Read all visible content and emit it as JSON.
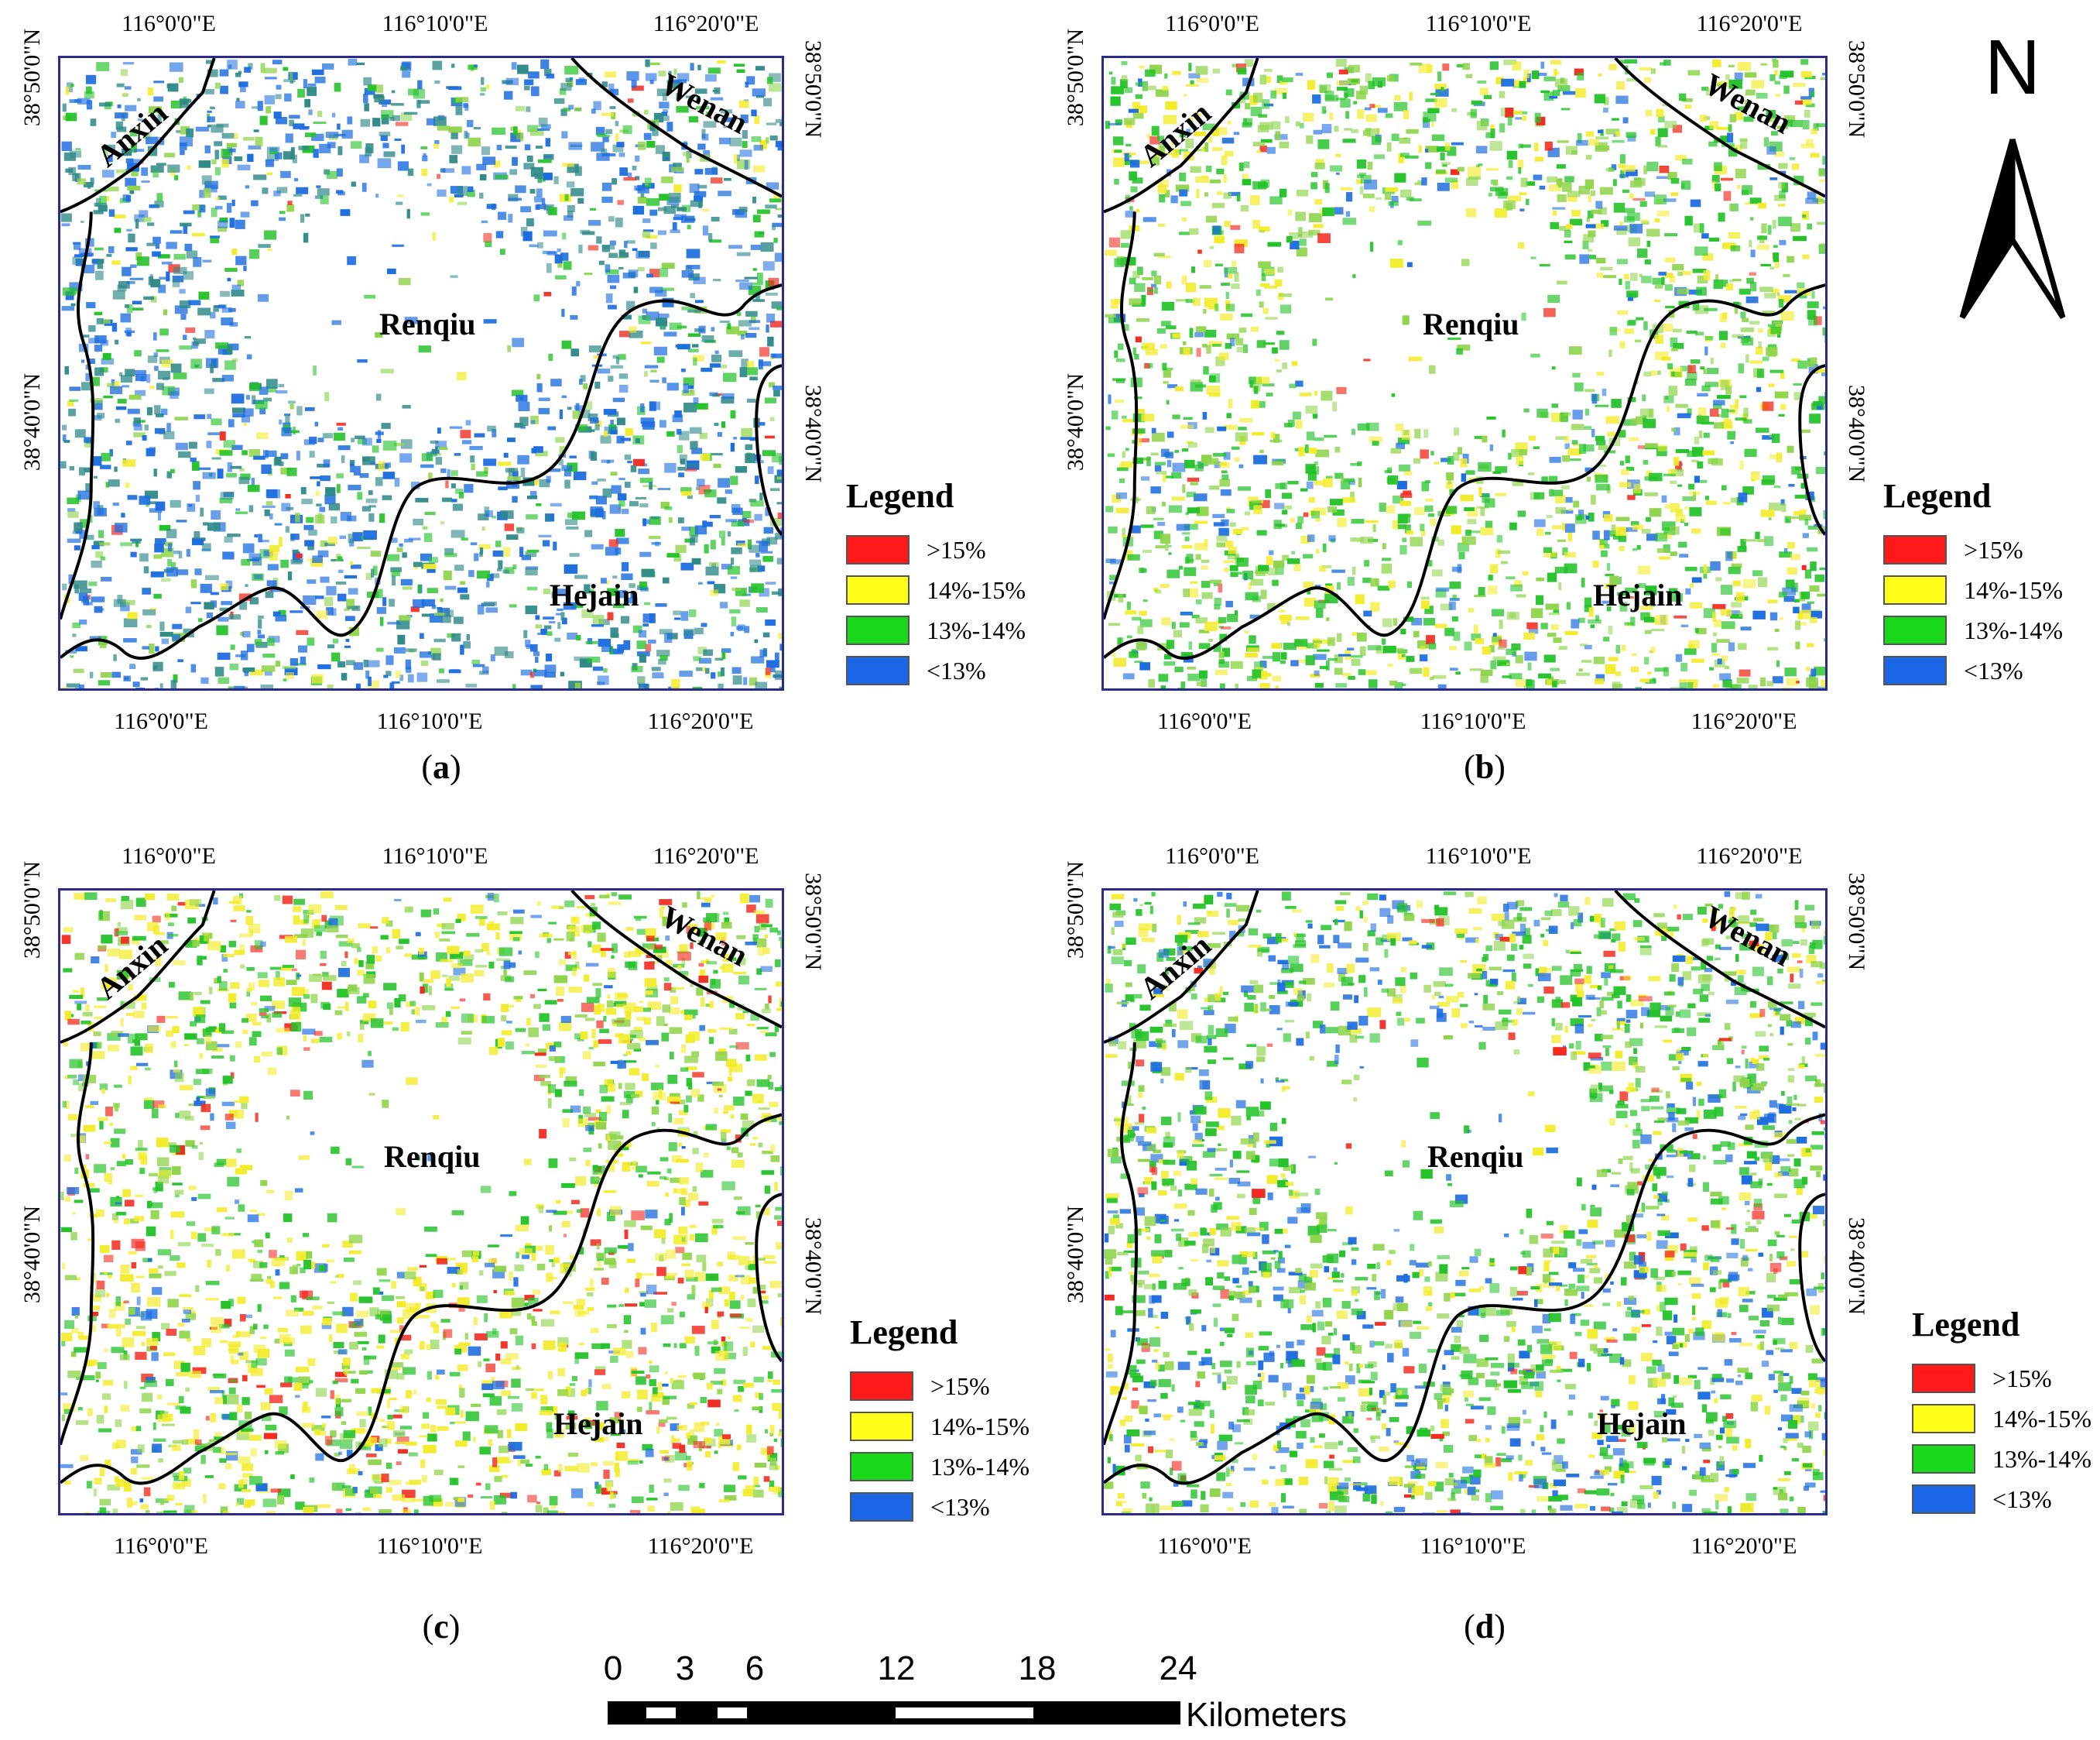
{
  "figure": {
    "panels": [
      {
        "id": "a",
        "caption": "a"
      },
      {
        "id": "b",
        "caption": "b"
      },
      {
        "id": "c",
        "caption": "c"
      },
      {
        "id": "d",
        "caption": "d"
      }
    ],
    "lon_ticks": [
      "116°0'0\"E",
      "116°10'0\"E",
      "116°20'0\"E"
    ],
    "lat_ticks": [
      "38°50'0\"N",
      "38°40'0\"N"
    ],
    "places": {
      "anxin": "Anxin",
      "wenan": "Wenan",
      "renqiu": "Renqiu",
      "hejain": "Hejain"
    },
    "legend": {
      "title": "Legend",
      "items": [
        {
          "label": ">15%",
          "color": "#ff1a1a"
        },
        {
          "label": "14%-15%",
          "color": "#ffff1a"
        },
        {
          "label": "13%-14%",
          "color": "#1ad81a"
        },
        {
          "label": "<13%",
          "color": "#1a66e6"
        }
      ]
    },
    "north": "N",
    "scale": {
      "ticks": [
        "0",
        "3",
        "6",
        "12",
        "18",
        "24"
      ],
      "units": "Kilometers"
    }
  },
  "colors": {
    "frame": "#2b2b8c",
    "boundary": "#000000"
  }
}
